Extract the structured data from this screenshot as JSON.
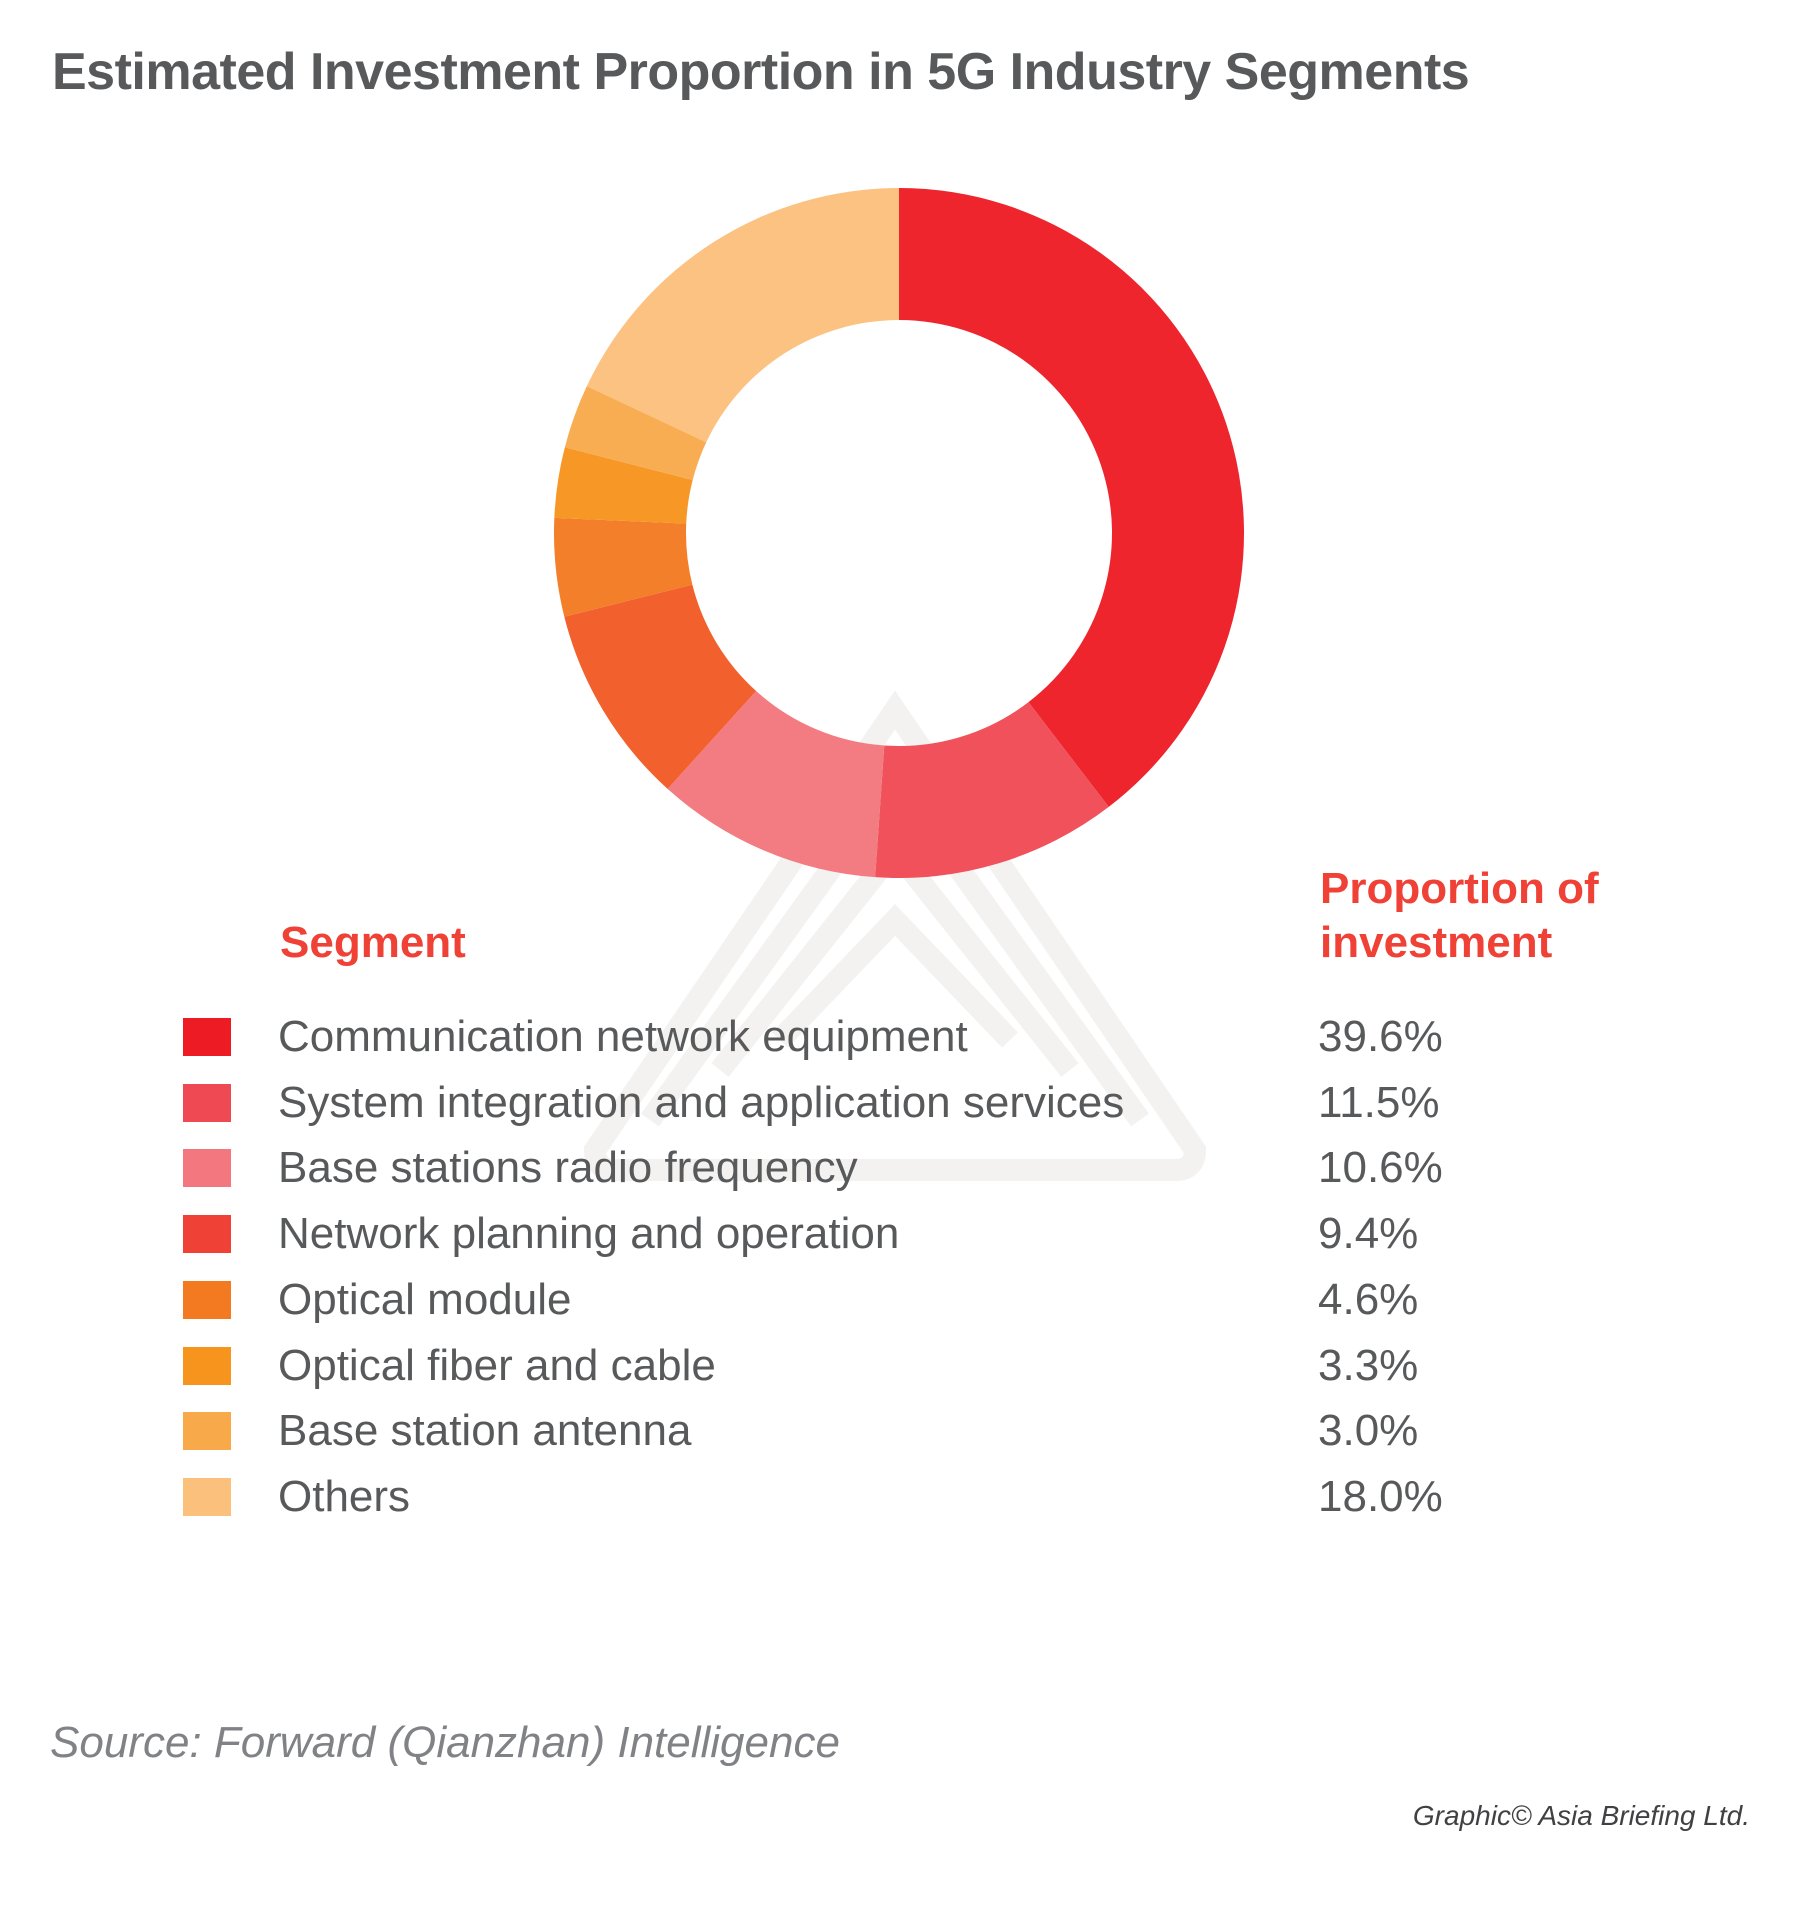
{
  "chart_data": {
    "type": "pie",
    "variant": "donut",
    "title": "Estimated Investment Proportion in 5G Industry Segments",
    "column_headers": {
      "segment": "Segment",
      "proportion": "Proportion of investment"
    },
    "categories": [
      "Communication network equipment",
      "System integration and application services",
      "Base stations radio frequency",
      "Network planning and operation",
      "Optical module",
      "Optical fiber and cable",
      "Base station antenna",
      "Others"
    ],
    "values": [
      39.6,
      11.5,
      10.6,
      9.4,
      4.6,
      3.3,
      3.0,
      18.0
    ],
    "value_labels": [
      "39.6%",
      "11.5%",
      "10.6%",
      "9.4%",
      "4.6%",
      "3.3%",
      "3.0%",
      "18.0%"
    ],
    "colors": [
      "#ed1c24",
      "#ef4a54",
      "#f2777e",
      "#ef4136",
      "#f37a21",
      "#f7941d",
      "#f8aa4b",
      "#fbc07c"
    ],
    "donut_slice_colors": [
      "#ed1c24",
      "#ef4a54",
      "#f2777e",
      "#f15a24",
      "#f37a21",
      "#f7941d",
      "#f8aa4b",
      "#fbc07c"
    ],
    "start": "top",
    "direction": "clockwise",
    "source": "Source: Forward (Qianzhan) Intelligence",
    "credit": "Graphic© Asia Briefing Ltd."
  }
}
